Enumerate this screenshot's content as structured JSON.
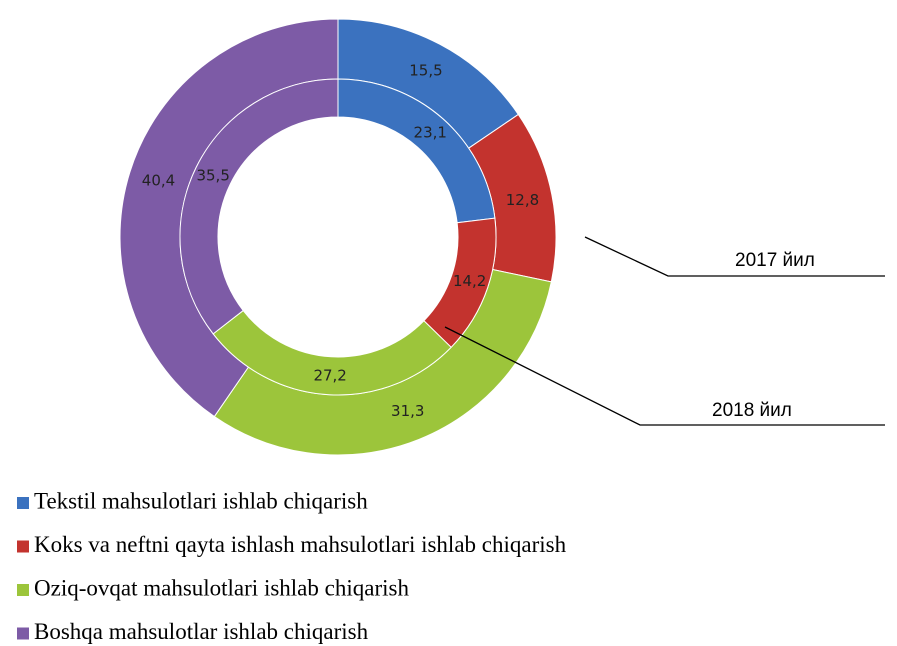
{
  "chart_data": {
    "type": "donut",
    "categories": [
      "Tekstil mahsulotlari ishlab chiqarish",
      "Koks va neftni qayta ishlash mahsulotlari ishlab chiqarish",
      "Oziq-ovqat mahsulotlari ishlab chiqarish",
      "Boshqa mahsulotlar ishlab chiqarish"
    ],
    "colors": [
      "#3b72bf",
      "#c3332e",
      "#9cc53b",
      "#7d5ba6"
    ],
    "series": [
      {
        "name": "2017 йил",
        "values": [
          15.5,
          12.8,
          31.3,
          40.4
        ],
        "value_labels": [
          "15,5",
          "12,8",
          "31,3",
          "40,4"
        ]
      },
      {
        "name": "2018 йил",
        "values": [
          23.1,
          14.2,
          27.2,
          35.5
        ],
        "value_labels": [
          "23,1",
          "14,2",
          "27,2",
          "35,5"
        ]
      }
    ]
  }
}
